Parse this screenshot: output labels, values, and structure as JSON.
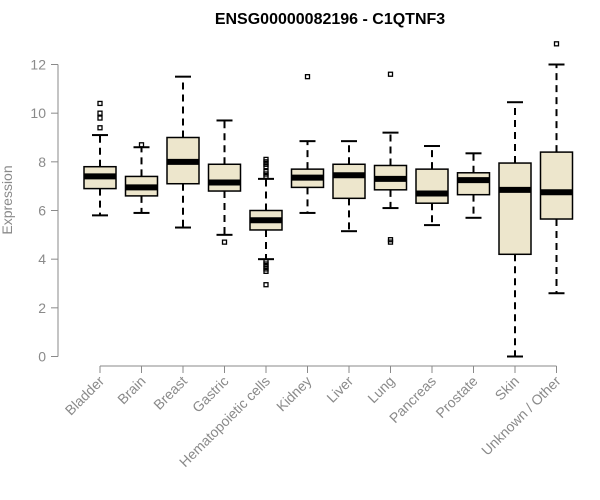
{
  "chart_data": {
    "type": "boxplot",
    "title": "ENSG00000082196 - C1QTNF3",
    "xlabel": "",
    "ylabel": "Expression",
    "ylim": [
      0,
      12
    ],
    "yticks": [
      0,
      2,
      4,
      6,
      8,
      10,
      12
    ],
    "grid": false,
    "box_fill": "#ede6cc",
    "box_stroke": "#000000",
    "axis_color": "#8a8a8a",
    "categories": [
      "Bladder",
      "Brain",
      "Breast",
      "Gastric",
      "Hematopoietic cells",
      "Kidney",
      "Liver",
      "Lung",
      "Pancreas",
      "Prostate",
      "Skin",
      "Unknown / Other"
    ],
    "boxes": [
      {
        "name": "Bladder",
        "whisker_low": 5.8,
        "q1": 6.9,
        "median": 7.4,
        "q3": 7.8,
        "whisker_high": 9.1,
        "outliers": [
          9.4,
          9.8,
          10.0,
          10.4
        ]
      },
      {
        "name": "Brain",
        "whisker_low": 5.9,
        "q1": 6.6,
        "median": 6.95,
        "q3": 7.4,
        "whisker_high": 8.6,
        "outliers": [
          8.7
        ]
      },
      {
        "name": "Breast",
        "whisker_low": 5.3,
        "q1": 7.1,
        "median": 8.0,
        "q3": 9.0,
        "whisker_high": 11.5,
        "outliers": []
      },
      {
        "name": "Gastric",
        "whisker_low": 5.0,
        "q1": 6.8,
        "median": 7.15,
        "q3": 7.9,
        "whisker_high": 9.7,
        "outliers": [
          4.7
        ]
      },
      {
        "name": "Hematopoietic cells",
        "whisker_low": 4.0,
        "q1": 5.2,
        "median": 5.6,
        "q3": 6.0,
        "whisker_high": 7.3,
        "outliers": [
          7.4,
          7.5,
          7.6,
          7.8,
          7.9,
          8.0,
          8.1,
          3.9,
          3.8,
          3.7,
          3.6,
          3.5,
          2.95
        ]
      },
      {
        "name": "Kidney",
        "whisker_low": 5.9,
        "q1": 6.95,
        "median": 7.35,
        "q3": 7.7,
        "whisker_high": 8.85,
        "outliers": [
          11.5
        ]
      },
      {
        "name": "Liver",
        "whisker_low": 5.15,
        "q1": 6.5,
        "median": 7.45,
        "q3": 7.9,
        "whisker_high": 8.85,
        "outliers": []
      },
      {
        "name": "Lung",
        "whisker_low": 6.1,
        "q1": 6.85,
        "median": 7.3,
        "q3": 7.85,
        "whisker_high": 9.2,
        "outliers": [
          4.7,
          4.8,
          11.6
        ]
      },
      {
        "name": "Pancreas",
        "whisker_low": 5.4,
        "q1": 6.3,
        "median": 6.7,
        "q3": 7.7,
        "whisker_high": 8.65,
        "outliers": []
      },
      {
        "name": "Prostate",
        "whisker_low": 5.7,
        "q1": 6.65,
        "median": 7.25,
        "q3": 7.55,
        "whisker_high": 8.35,
        "outliers": []
      },
      {
        "name": "Skin",
        "whisker_low": 0.0,
        "q1": 4.2,
        "median": 6.85,
        "q3": 7.95,
        "whisker_high": 10.45,
        "outliers": []
      },
      {
        "name": "Unknown / Other",
        "whisker_low": 2.6,
        "q1": 5.65,
        "median": 6.75,
        "q3": 8.4,
        "whisker_high": 12.0,
        "outliers": [
          12.85
        ]
      }
    ]
  }
}
